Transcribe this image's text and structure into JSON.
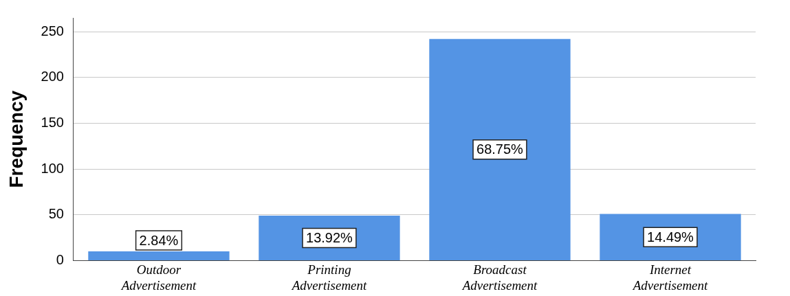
{
  "chart_data": {
    "type": "bar",
    "ylabel": "Frequency",
    "categories": [
      "Outdoor Advertisement",
      "Printing Advertisement",
      "Broadcast Advertisement",
      "Internet Advertisement"
    ],
    "values": [
      10,
      49,
      242,
      51
    ],
    "color": "#5494e4",
    "ylim": [
      0,
      265
    ],
    "yticks": [
      0,
      50,
      100,
      150,
      200,
      250
    ],
    "grid": "y",
    "legend": false,
    "annotations": [
      "2.84%",
      "13.92%",
      "68.75%",
      "14.49%"
    ]
  }
}
